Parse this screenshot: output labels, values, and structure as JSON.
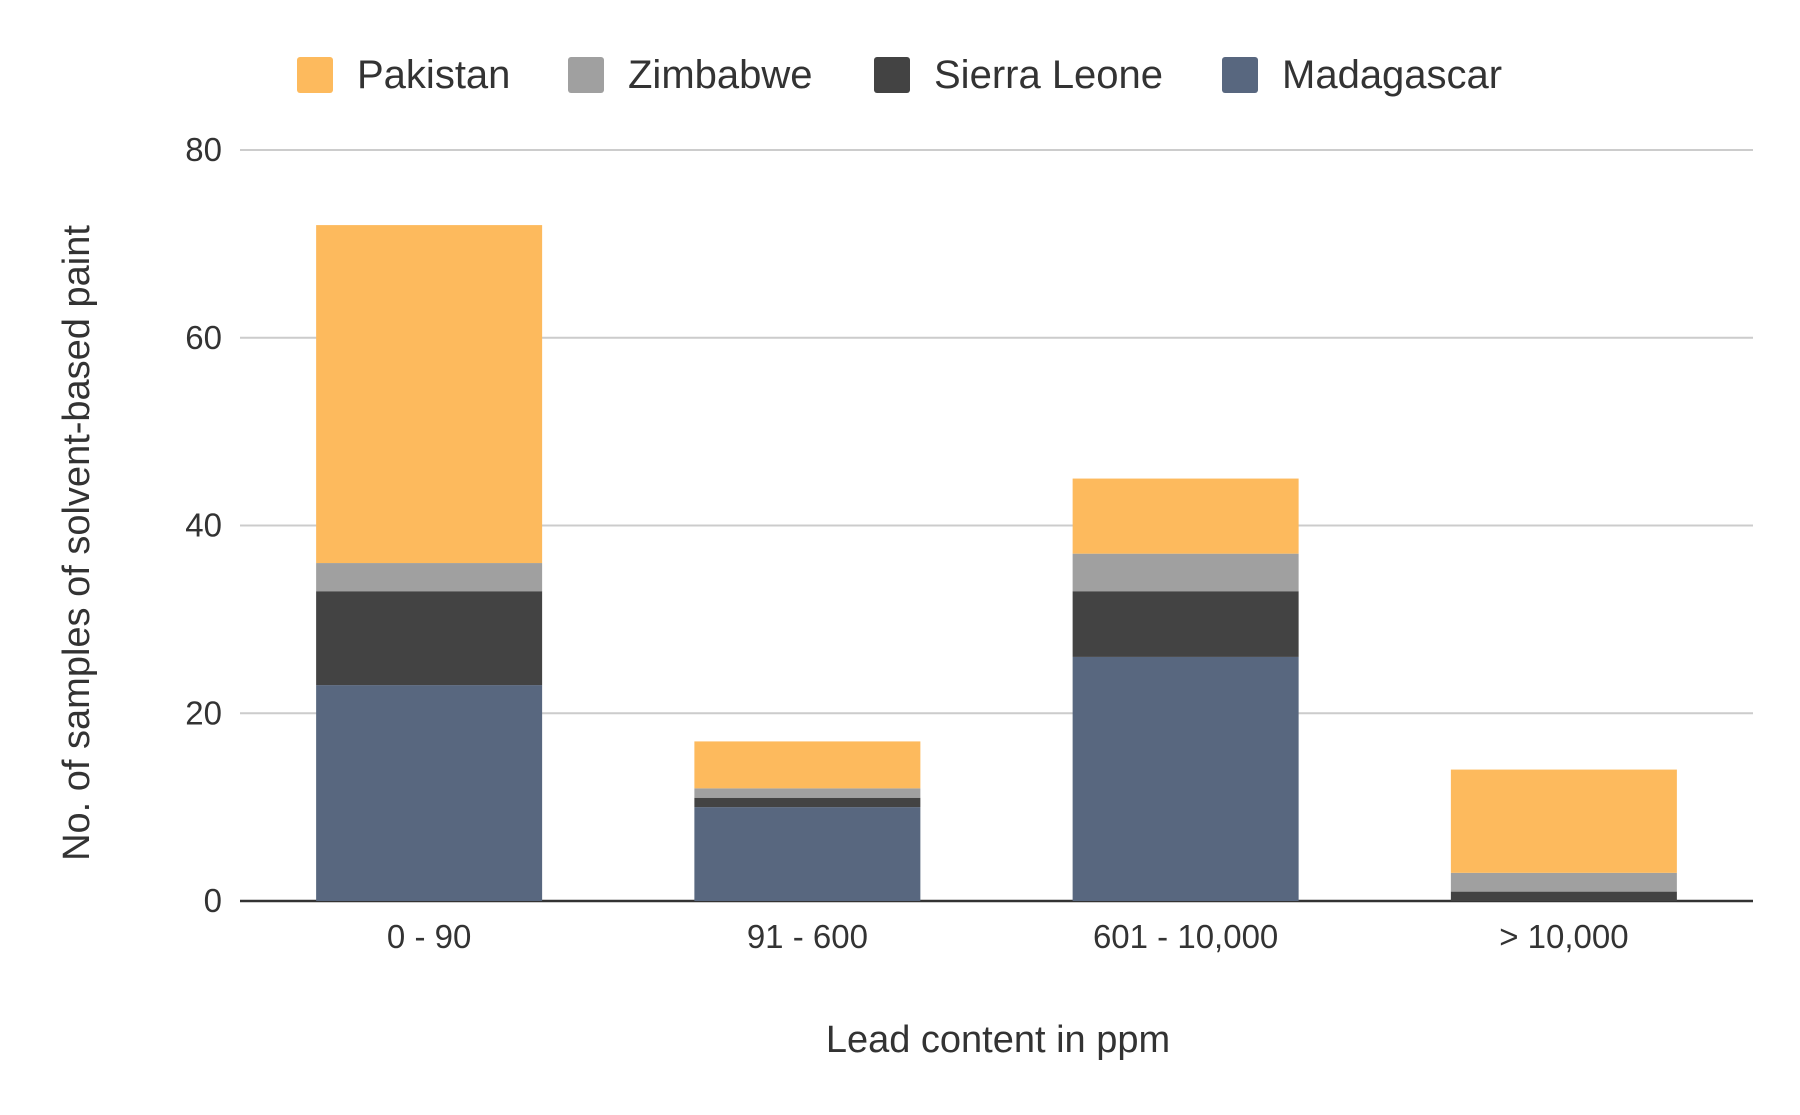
{
  "chart_data": {
    "type": "bar",
    "stacked": true,
    "categories": [
      "0 - 90",
      "91 - 600",
      "601 - 10,000",
      "> 10,000"
    ],
    "series": [
      {
        "name": "Madagascar",
        "color": "#58677f",
        "values": [
          23,
          10,
          26,
          0
        ]
      },
      {
        "name": "Sierra Leone",
        "color": "#434343",
        "values": [
          10,
          1,
          7,
          1
        ]
      },
      {
        "name": "Zimbabwe",
        "color": "#a0a0a0",
        "values": [
          3,
          1,
          4,
          2
        ]
      },
      {
        "name": "Pakistan",
        "color": "#fdba5d",
        "values": [
          36,
          5,
          8,
          11
        ]
      }
    ],
    "legend_order": [
      "Pakistan",
      "Zimbabwe",
      "Sierra Leone",
      "Madagascar"
    ],
    "legend_position": "top",
    "xlabel": "Lead content in ppm",
    "ylabel": "No. of samples of solvent-based paint",
    "ylim": [
      0,
      80
    ],
    "yticks": [
      0,
      20,
      40,
      60,
      80
    ],
    "grid": true
  }
}
